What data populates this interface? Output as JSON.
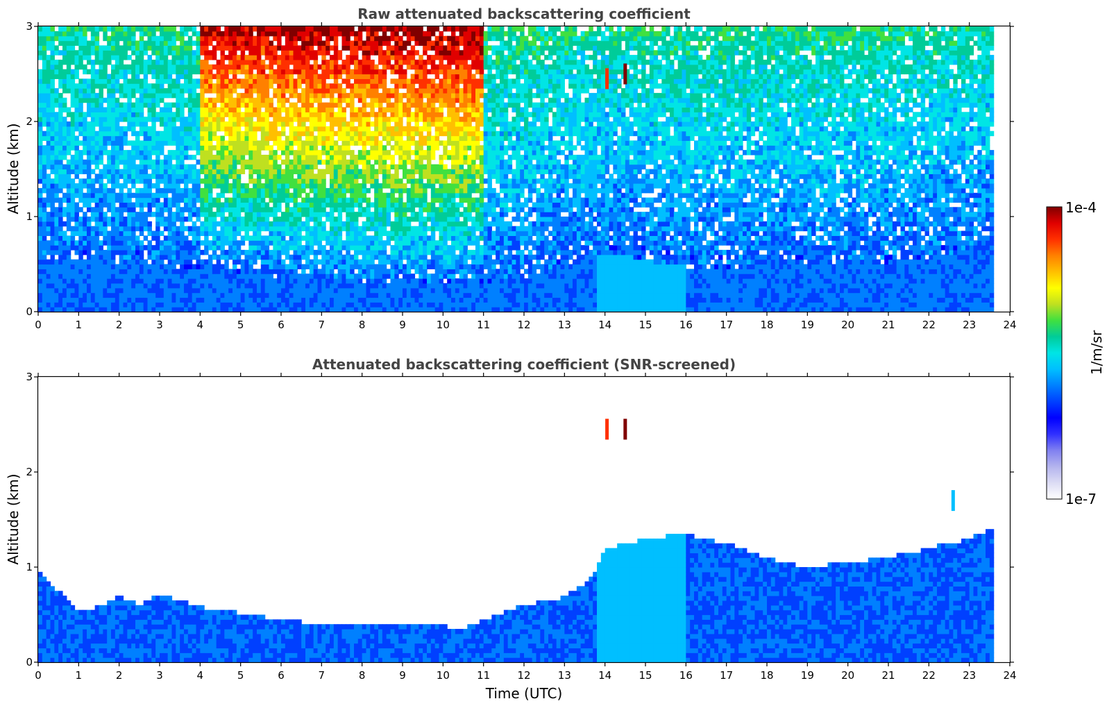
{
  "chart_data": [
    {
      "type": "heatmap",
      "title": "Raw attenuated backscattering coefficient",
      "xlabel": "",
      "ylabel": "Altitude (km)",
      "xlim": [
        0,
        24
      ],
      "ylim": [
        0,
        3
      ],
      "xticks": [
        "0",
        "1",
        "2",
        "3",
        "4",
        "5",
        "6",
        "7",
        "8",
        "9",
        "10",
        "11",
        "12",
        "13",
        "14",
        "15",
        "16",
        "17",
        "18",
        "19",
        "20",
        "21",
        "22",
        "23",
        "24"
      ],
      "yticks": [
        "0",
        "1",
        "2",
        "3"
      ],
      "data_time_end": 23.6,
      "boundary_layer_top_km": {
        "time": [
          0,
          2,
          4,
          6,
          8,
          10,
          11,
          12,
          13,
          13.7,
          14.5,
          15.5,
          16.5,
          17.5,
          18.5,
          19.5,
          20.5,
          21.5,
          22.5,
          23.6
        ],
        "value": [
          0.55,
          0.5,
          0.45,
          0.35,
          0.3,
          0.28,
          0.3,
          0.35,
          0.5,
          0.6,
          0.6,
          0.5,
          0.45,
          0.45,
          0.55,
          0.45,
          0.5,
          0.55,
          0.6,
          0.7
        ]
      },
      "features": [
        {
          "type": "cloud",
          "time": 14.05,
          "altitude_km": 2.45,
          "value": 5e-05
        },
        {
          "type": "cloud",
          "time": 14.5,
          "altitude_km": 2.5,
          "value": 0.0001
        }
      ]
    },
    {
      "type": "heatmap",
      "title": "Attenuated backscattering coefficient (SNR-screened)",
      "xlabel": "Time (UTC)",
      "ylabel": "Altitude (km)",
      "xlim": [
        0,
        24
      ],
      "ylim": [
        0,
        3
      ],
      "xticks": [
        "0",
        "1",
        "2",
        "3",
        "4",
        "5",
        "6",
        "7",
        "8",
        "9",
        "10",
        "11",
        "12",
        "13",
        "14",
        "15",
        "16",
        "17",
        "18",
        "19",
        "20",
        "21",
        "22",
        "23",
        "24"
      ],
      "yticks": [
        "0",
        "1",
        "2",
        "3"
      ],
      "data_time_end": 23.6,
      "signal_top_km": {
        "time": [
          0,
          0.5,
          1,
          1.5,
          2,
          2.5,
          3,
          4,
          5,
          6,
          7,
          8,
          9,
          10,
          10.5,
          11,
          12,
          13,
          13.7,
          14,
          14.5,
          15,
          16,
          17,
          18,
          19,
          20,
          21,
          22,
          23,
          23.6
        ],
        "value": [
          0.95,
          0.75,
          0.55,
          0.58,
          0.7,
          0.6,
          0.72,
          0.58,
          0.52,
          0.45,
          0.4,
          0.42,
          0.4,
          0.38,
          0.36,
          0.45,
          0.6,
          0.68,
          0.9,
          1.2,
          1.25,
          1.3,
          1.35,
          1.25,
          1.1,
          1.0,
          1.05,
          1.1,
          1.2,
          1.3,
          1.4
        ]
      },
      "features": [
        {
          "type": "cloud",
          "time": 14.05,
          "altitude_km": 2.45,
          "value": 5e-05
        },
        {
          "type": "cloud",
          "time": 14.5,
          "altitude_km": 2.45,
          "value": 0.0001
        },
        {
          "type": "cloud",
          "time": 22.6,
          "altitude_km": 1.7,
          "value": 2e-06
        }
      ]
    }
  ],
  "colorbar": {
    "label": "1/m/sr",
    "max_label": "1e-4",
    "min_label": "1e-7",
    "colors": [
      "#ffffff",
      "#dcdcf4",
      "#b4b4ee",
      "#8080f0",
      "#3030ff",
      "#0000ff",
      "#0040ff",
      "#0080ff",
      "#00bfff",
      "#00e5e5",
      "#00cc99",
      "#40e040",
      "#bfe020",
      "#ffff00",
      "#ffbf00",
      "#ff8000",
      "#ff3000",
      "#e00000",
      "#800000"
    ]
  }
}
